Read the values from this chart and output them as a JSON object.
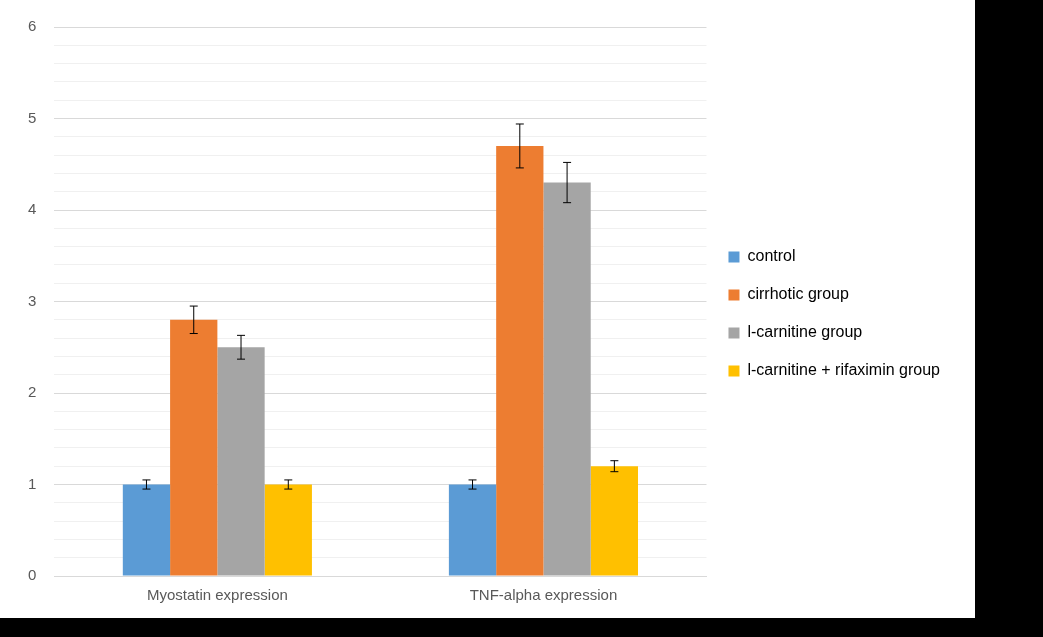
{
  "chart_data": {
    "type": "bar",
    "categories": [
      "Myostatin expression",
      "TNF-alpha expression"
    ],
    "series": [
      {
        "name": "control",
        "color": "#5b9bd5",
        "values": [
          1.0,
          1.0
        ],
        "errors": [
          0.05,
          0.05
        ]
      },
      {
        "name": "cirrhotic group",
        "color": "#ed7d31",
        "values": [
          2.8,
          4.7
        ],
        "errors": [
          0.15,
          0.24
        ]
      },
      {
        "name": "l-carnitine group",
        "color": "#a5a5a5",
        "values": [
          2.5,
          4.3
        ],
        "errors": [
          0.13,
          0.22
        ]
      },
      {
        "name": "l-carnitine + rifaximin group",
        "color": "#ffc000",
        "values": [
          1.0,
          1.2
        ],
        "errors": [
          0.05,
          0.06
        ]
      }
    ],
    "ylim": [
      0,
      6
    ],
    "yticks": [
      0,
      {
        "value": 0.2,
        "label": null
      },
      {
        "value": 0.4,
        "label": null
      },
      {
        "value": 0.6,
        "label": null
      },
      {
        "value": 0.8,
        "label": null
      },
      1,
      {
        "value": 1.2,
        "label": null
      },
      {
        "value": 1.4,
        "label": null
      },
      {
        "value": 1.6,
        "label": null
      },
      {
        "value": 1.8,
        "label": null
      },
      2,
      {
        "value": 2.2,
        "label": null
      },
      {
        "value": 2.4,
        "label": null
      },
      {
        "value": 2.6,
        "label": null
      },
      {
        "value": 2.8,
        "label": null
      },
      3,
      {
        "value": 3.2,
        "label": null
      },
      {
        "value": 3.4,
        "label": null
      },
      {
        "value": 3.6,
        "label": null
      },
      {
        "value": 3.8,
        "label": null
      },
      4,
      {
        "value": 4.2,
        "label": null
      },
      {
        "value": 4.4,
        "label": null
      },
      {
        "value": 4.6,
        "label": null
      },
      {
        "value": 4.8,
        "label": null
      },
      5,
      {
        "value": 5.2,
        "label": null
      },
      {
        "value": 5.4,
        "label": null
      },
      {
        "value": 5.6,
        "label": null
      },
      {
        "value": 5.8,
        "label": null
      },
      6
    ],
    "grid": "y",
    "legend": "right"
  }
}
